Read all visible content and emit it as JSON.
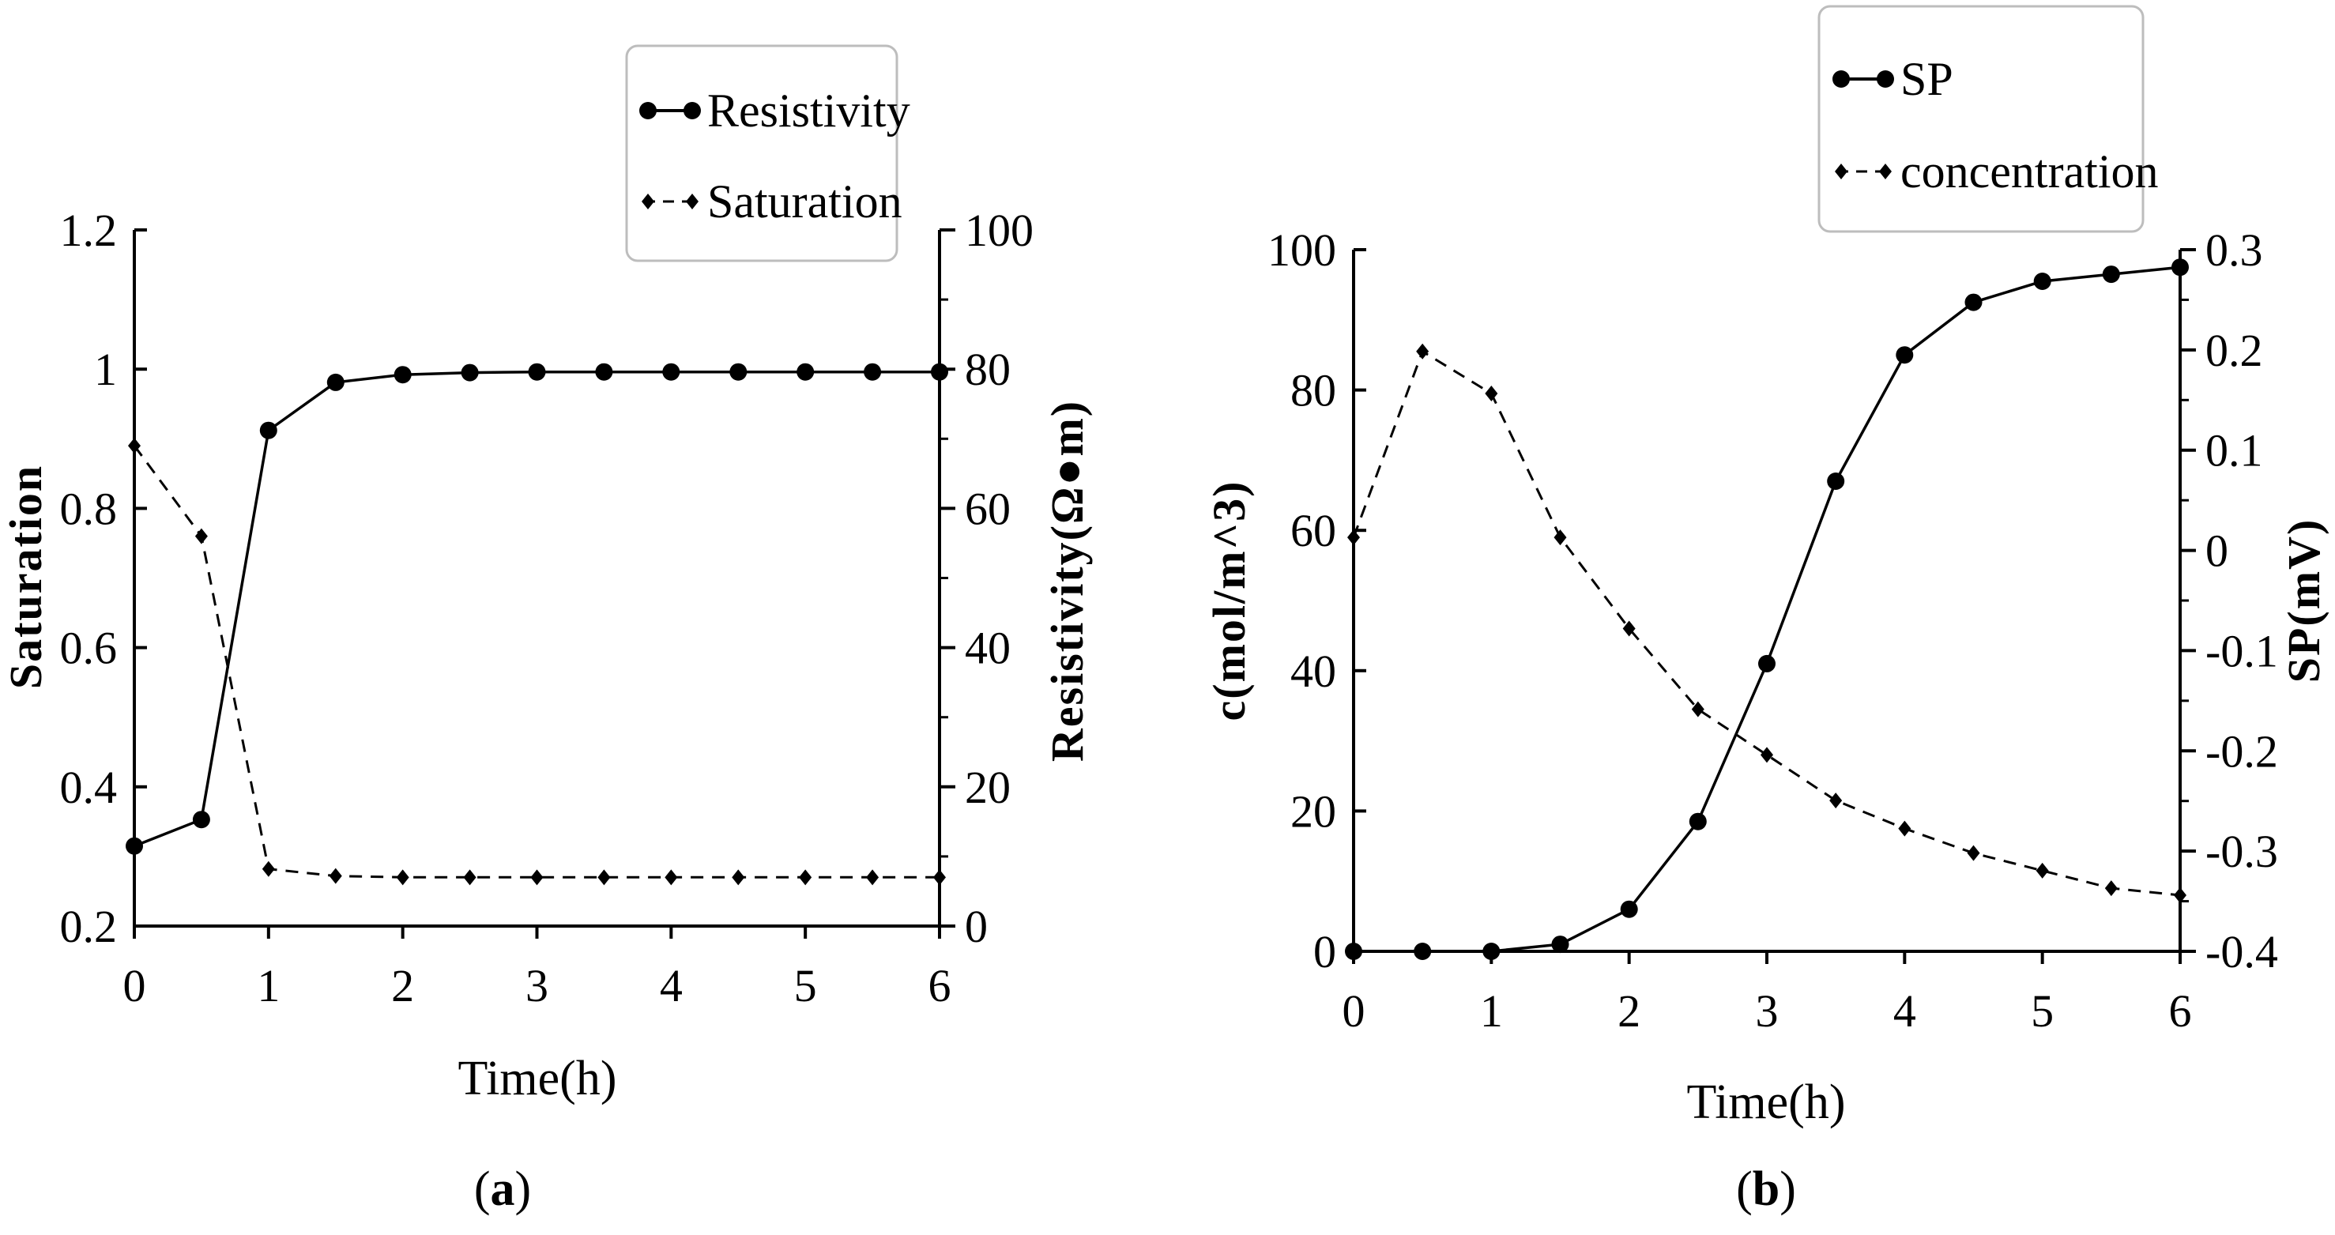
{
  "colors": {
    "line": "#000000",
    "legend_border": "#bdbdbd",
    "background": "#ffffff"
  },
  "chart_data": [
    {
      "type": "line",
      "panel_label": "a",
      "xlabel": "Time(h)",
      "ylabel_left": "Saturation",
      "ylabel_right": "Resistivity(Ω●m)",
      "x_ticks": [
        "0",
        "1",
        "2",
        "3",
        "4",
        "5",
        "6"
      ],
      "y_left_ticks": [
        "0.2",
        "0.4",
        "0.6",
        "0.8",
        "1",
        "1.2"
      ],
      "y_right_ticks": [
        "0",
        "20",
        "40",
        "60",
        "80",
        "100"
      ],
      "xlim": [
        0,
        6
      ],
      "y_left_lim": [
        0.2,
        1.2
      ],
      "y_right_lim": [
        0,
        100
      ],
      "x": [
        0,
        0.5,
        1,
        1.5,
        2,
        2.5,
        3,
        3.5,
        4,
        4.5,
        5,
        5.5,
        6
      ],
      "series": [
        {
          "name": "Resistivity",
          "axis": "left",
          "style": "solid",
          "marker": "circle",
          "values": [
            0.315,
            0.353,
            0.912,
            0.981,
            0.992,
            0.995,
            0.996,
            0.996,
            0.996,
            0.996,
            0.996,
            0.996,
            0.996
          ]
        },
        {
          "name": "Saturation",
          "axis": "left",
          "style": "dashed",
          "marker": "diamond",
          "values": [
            0.89,
            0.76,
            0.282,
            0.272,
            0.27,
            0.27,
            0.27,
            0.27,
            0.27,
            0.27,
            0.27,
            0.27,
            0.27
          ]
        }
      ],
      "legend": [
        "Resistivity",
        "Saturation"
      ],
      "legend_position": "top-right",
      "grid": false
    },
    {
      "type": "line",
      "panel_label": "b",
      "xlabel": "Time(h)",
      "ylabel_left": "c(mol/m^3)",
      "ylabel_right": "SP(mV)",
      "x_ticks": [
        "0",
        "1",
        "2",
        "3",
        "4",
        "5",
        "6"
      ],
      "y_left_ticks": [
        "0",
        "20",
        "40",
        "60",
        "80",
        "100"
      ],
      "y_right_ticks": [
        "-0.4",
        "-0.3",
        "-0.2",
        "-0.1",
        "0",
        "0.1",
        "0.2",
        "0.3"
      ],
      "xlim": [
        0,
        6
      ],
      "y_left_lim": [
        0,
        100
      ],
      "y_right_lim": [
        -0.4,
        0.3
      ],
      "x": [
        0,
        0.5,
        1,
        1.5,
        2,
        2.5,
        3,
        3.5,
        4,
        4.5,
        5,
        5.5,
        6
      ],
      "series": [
        {
          "name": "SP",
          "axis": "left",
          "style": "solid",
          "marker": "circle",
          "values": [
            0,
            0,
            0,
            1,
            6,
            18.5,
            41,
            67,
            85,
            92.5,
            95.5,
            96.5,
            97.5
          ]
        },
        {
          "name": "concentration",
          "axis": "left",
          "style": "dashed",
          "marker": "diamond",
          "values": [
            59,
            85.5,
            79.5,
            59,
            46,
            34.5,
            28,
            21.5,
            17.5,
            14,
            11.5,
            9,
            8
          ]
        }
      ],
      "legend": [
        "SP",
        "concentration"
      ],
      "legend_position": "top-right",
      "grid": false
    }
  ]
}
